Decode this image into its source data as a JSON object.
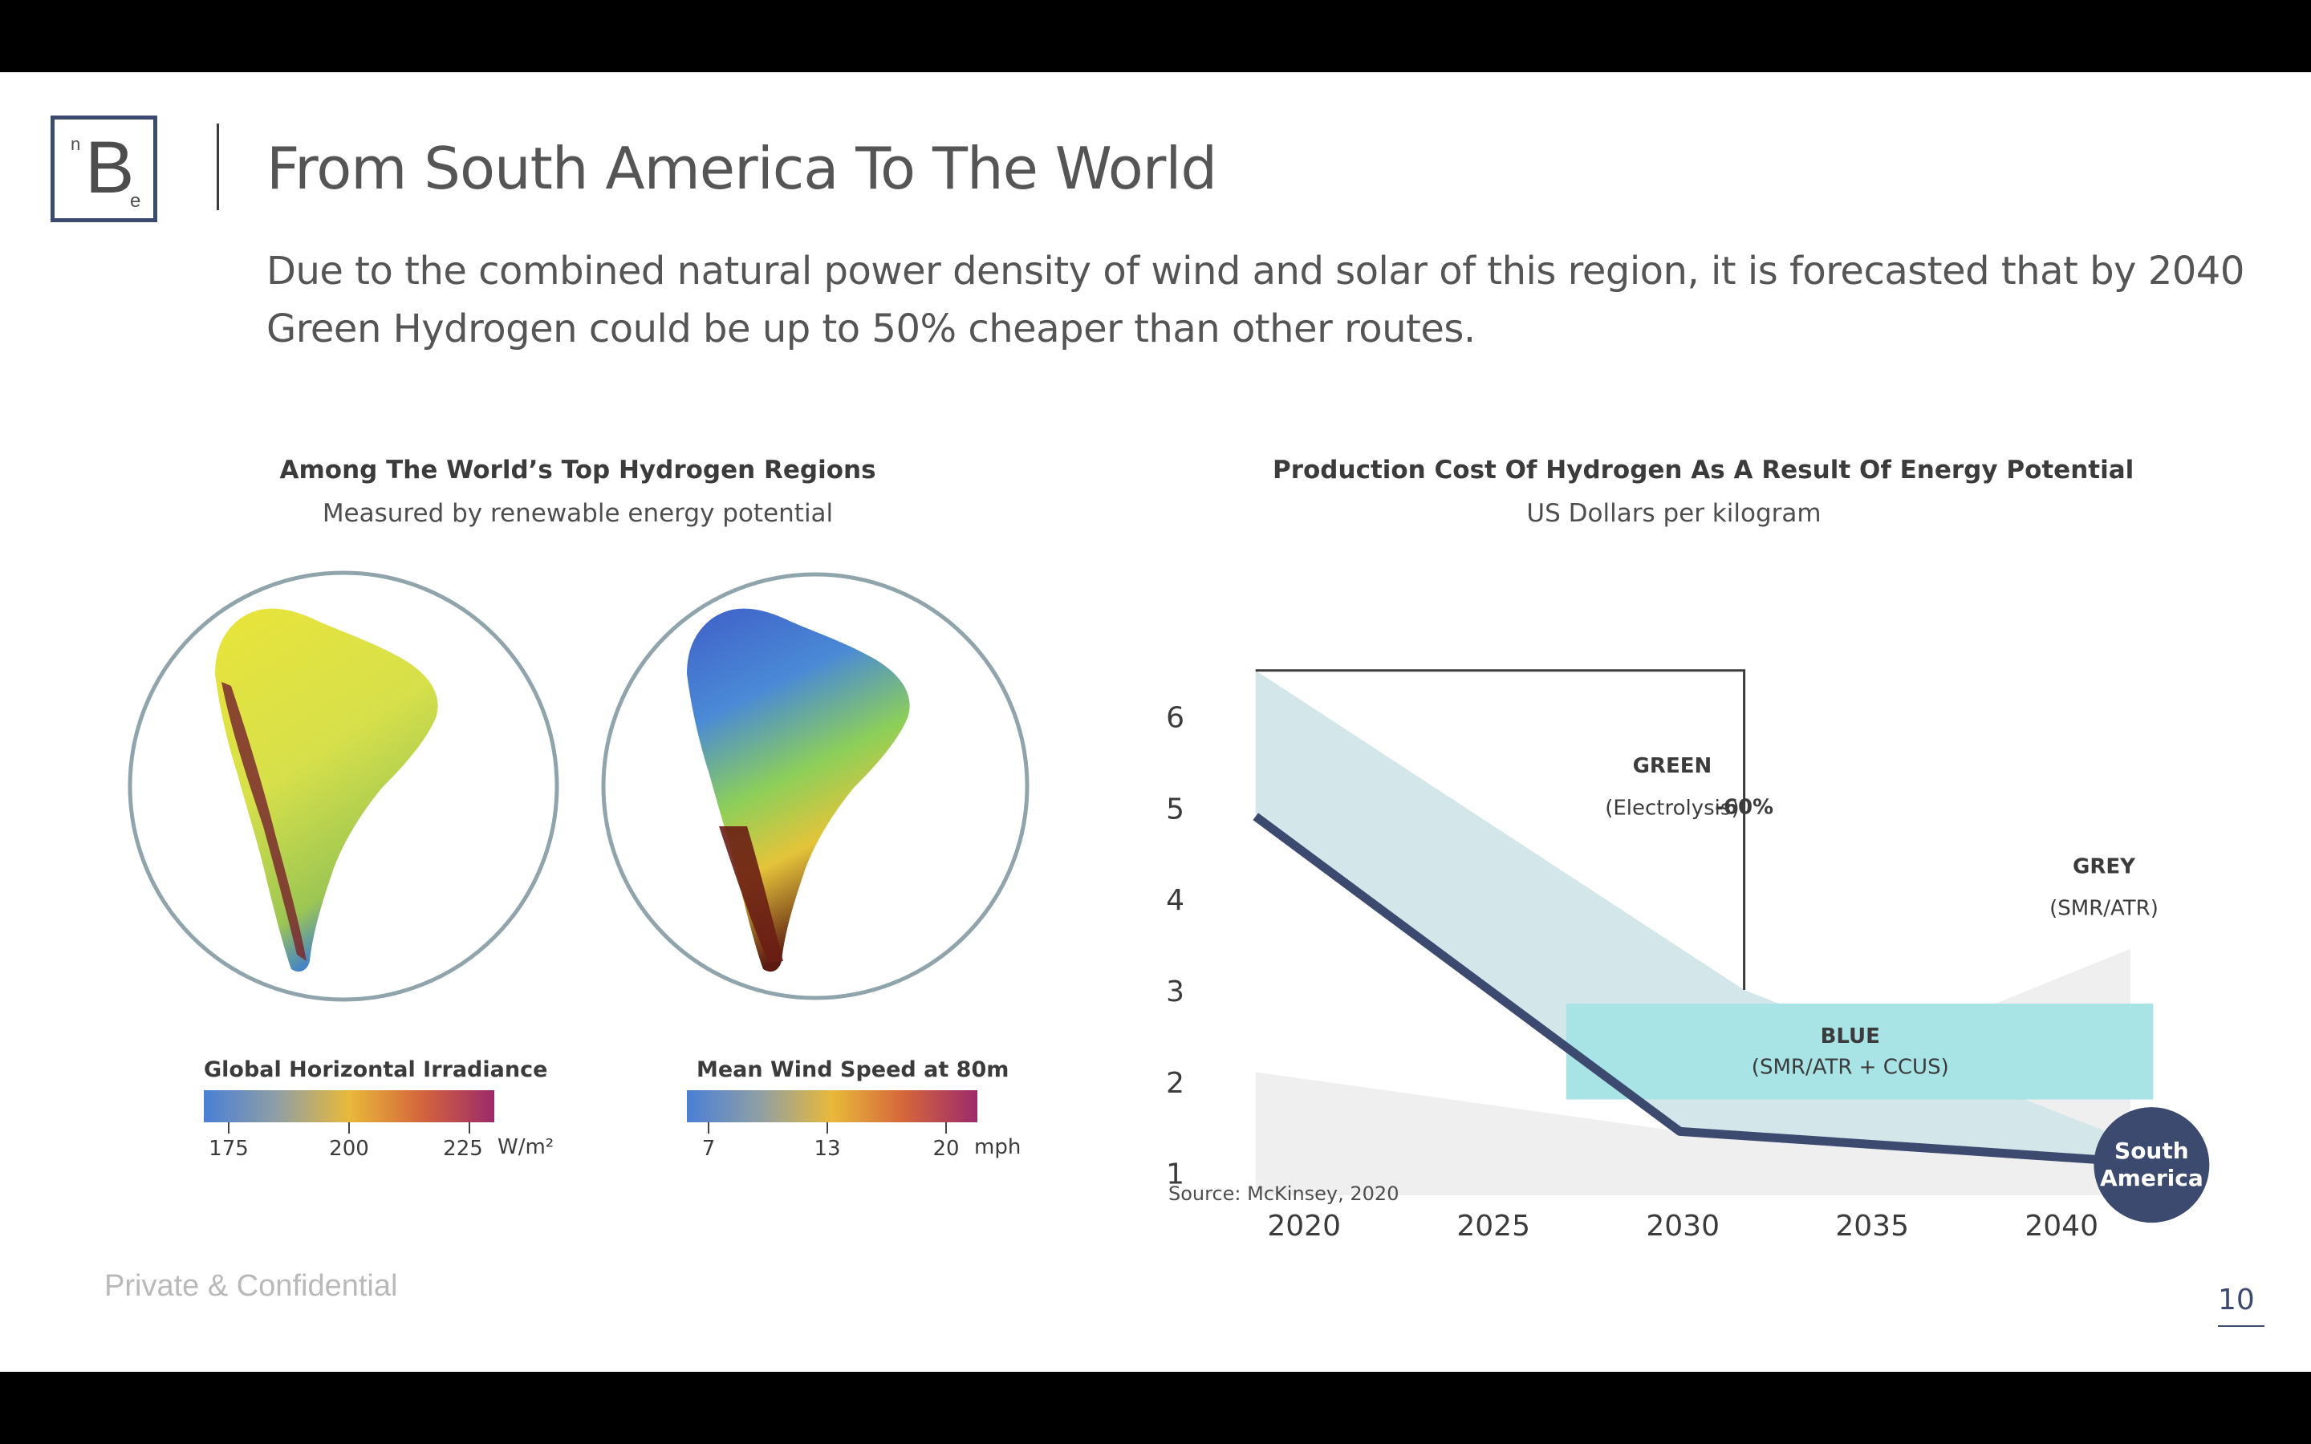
{
  "slide": {
    "title": "From South America To The World",
    "subtitle": "Due to the combined natural power density of wind and solar of this region, it is forecasted that by 2040 Green Hydrogen could be up to 50% cheaper than other routes.",
    "footer": "Private & Confidential",
    "page_number": "10",
    "logo": {
      "n": "n",
      "b": "B",
      "e": "e"
    }
  },
  "left_panel": {
    "heading": "Among The World’s Top Hydrogen Regions",
    "subheading": "Measured by renewable energy potential",
    "maps": [
      {
        "name": "solar-irradiance-map",
        "legend_title": "Global Horizontal Irradiance",
        "ticks": [
          "175",
          "200",
          "225"
        ],
        "unit": "W/m²"
      },
      {
        "name": "wind-speed-map",
        "legend_title": "Mean Wind Speed at 80m",
        "ticks": [
          "7",
          "13",
          "20"
        ],
        "unit": "mph"
      }
    ]
  },
  "right_panel": {
    "heading": "Production Cost Of Hydrogen As A Result Of Energy Potential",
    "subheading": "US Dollars per kilogram",
    "source": "Source: McKinsey, 2020"
  },
  "chart_data": {
    "type": "area",
    "xlabel": "",
    "ylabel": "",
    "x_ticks": [
      "2020",
      "2025",
      "2030",
      "2035",
      "2040"
    ],
    "y_ticks": [
      "1",
      "2",
      "3",
      "4",
      "5",
      "6"
    ],
    "xlim": [
      2019,
      2044
    ],
    "ylim": [
      0.75,
      6.55
    ],
    "series": [
      {
        "name": "GREEN",
        "note": "(Electrolysis)",
        "color": "#d3e6e9",
        "upper": [
          [
            2019.1,
            6.5
          ],
          [
            2032,
            3.0
          ],
          [
            2042.8,
            1.25
          ]
        ],
        "lower": [
          [
            2019.1,
            4.9
          ],
          [
            2030.3,
            1.45
          ],
          [
            2042.8,
            1.1
          ]
        ]
      },
      {
        "name": "GREY",
        "note": "(SMR/ATR)",
        "color": "#efefef",
        "upper": [
          [
            2019.1,
            2.1
          ],
          [
            2030.3,
            1.45
          ],
          [
            2042.2,
            3.45
          ]
        ],
        "lower": [
          [
            2019.1,
            0.75
          ],
          [
            2030.3,
            0.75
          ],
          [
            2042.2,
            0.75
          ]
        ]
      },
      {
        "name": "BLUE",
        "note": "(SMR/ATR + CCUS)",
        "color": "#a8e3e6",
        "range_x": [
          2027.3,
          2042.8
        ],
        "range_y": [
          1.8,
          2.85
        ]
      }
    ],
    "south_america_line": {
      "label": "South America",
      "color": "#3d4a70",
      "points": [
        [
          2019.1,
          4.9
        ],
        [
          2030.3,
          1.45
        ],
        [
          2042.8,
          1.1
        ]
      ]
    },
    "annotation": {
      "label": "-60%",
      "bracket_from_y": 6.5,
      "bracket_to_y": 3.0,
      "bracket_x": 2032
    }
  }
}
